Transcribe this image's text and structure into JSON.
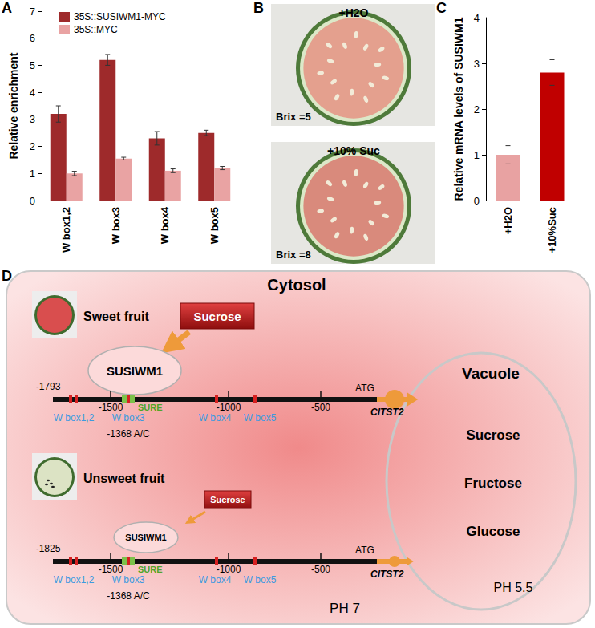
{
  "panel_labels": [
    "A",
    "B",
    "C",
    "D"
  ],
  "chart_data": [
    {
      "type": "bar",
      "y_label": "Relative enrichment",
      "categories": [
        "W box1,2",
        "W box3",
        "W box4",
        "W box5"
      ],
      "series": [
        {
          "name": "35S::SUSIWM1-MYC",
          "color": "#9E2A2B",
          "values": [
            3.2,
            5.2,
            2.3,
            2.5
          ],
          "errors": [
            0.3,
            0.2,
            0.25,
            0.1
          ]
        },
        {
          "name": "35S::MYC",
          "color": "#E9A3A3",
          "values": [
            1.0,
            1.55,
            1.1,
            1.2
          ],
          "errors": [
            0.08,
            0.05,
            0.07,
            0.06
          ]
        }
      ],
      "ylim": [
        0,
        7
      ],
      "yticks": [
        0,
        1,
        2,
        3,
        4,
        5,
        6,
        7
      ],
      "grid": false,
      "legend": "upper left"
    },
    {
      "type": "bar",
      "y_label": "Relative mRNA levels of SUSIWM1",
      "categories": [
        "+H2O",
        "+10%Suc"
      ],
      "values": [
        1.0,
        2.8
      ],
      "errors": [
        0.2,
        0.28
      ],
      "colors": [
        "#E8A2A2",
        "#C00000"
      ],
      "ylim": [
        0,
        4
      ],
      "yticks": [
        0,
        1,
        2,
        3,
        4
      ],
      "grid": false
    }
  ],
  "photos": [
    {
      "caption": "+H2O",
      "brix": "Brix =5"
    },
    {
      "caption": "+10% Suc",
      "brix": "Brix =8"
    }
  ],
  "diagram": {
    "compartment": "Cytosol",
    "cytosol_ph": "PH 7",
    "vacuole": {
      "label": "Vacuole",
      "sugars": [
        "Sucrose",
        "Fructose",
        "Glucose"
      ],
      "ph": "PH 5.5"
    },
    "rows": [
      {
        "fruit": "Sweet fruit",
        "signal": "Sucrose",
        "factor": "SUSIWM1",
        "start": "-1793"
      },
      {
        "fruit": "Unsweet fruit",
        "signal": "Sucrose",
        "factor": "SUSIWM1",
        "start": "-1825"
      }
    ],
    "promoter": {
      "ticks": [
        "-1500",
        "-1000",
        "-500"
      ],
      "atg": "ATG",
      "gene": "ClTST2",
      "element": "SURE",
      "wbox_labels": [
        "W box1,2",
        "W box3",
        "W box4",
        "W box5"
      ],
      "snp": "-1368 A/C"
    }
  }
}
